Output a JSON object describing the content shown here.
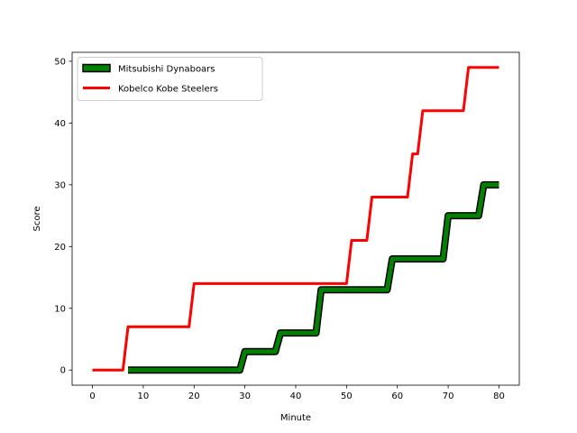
{
  "chart_data": {
    "type": "line",
    "title": "",
    "xlabel": "Minute",
    "ylabel": "Score",
    "xlim": [
      -4,
      84
    ],
    "ylim": [
      -2.45,
      51.45
    ],
    "xticks": [
      0,
      10,
      20,
      30,
      40,
      50,
      60,
      70,
      80
    ],
    "yticks": [
      0,
      10,
      20,
      30,
      40,
      50
    ],
    "grid": false,
    "legend_position": "top-left",
    "series": [
      {
        "name": "Mitsubishi Dynaboars",
        "color": "#008000",
        "edge_color": "#000000",
        "style": "outlined",
        "x": [
          7,
          29,
          30,
          36,
          37,
          44,
          45,
          58,
          59,
          69,
          70,
          76,
          77,
          80
        ],
        "y": [
          0,
          0,
          3,
          3,
          6,
          6,
          13,
          13,
          18,
          18,
          25,
          25,
          30,
          30
        ]
      },
      {
        "name": "Kobelco Kobe Steelers",
        "color": "#ff0000",
        "style": "solid",
        "x": [
          0,
          6,
          7,
          19,
          20,
          50,
          51,
          54,
          55,
          62,
          63,
          64,
          65,
          73,
          74,
          80
        ],
        "y": [
          0,
          0,
          7,
          7,
          14,
          14,
          21,
          21,
          28,
          28,
          35,
          35,
          42,
          42,
          49,
          49
        ]
      }
    ]
  }
}
